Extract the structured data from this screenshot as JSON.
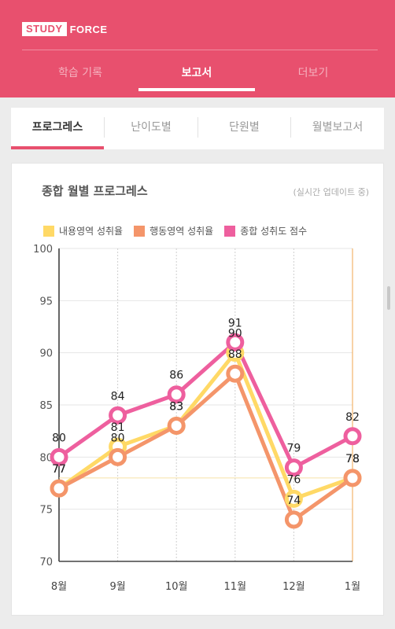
{
  "header": {
    "logo_box": "STUDY",
    "logo_text": "FORCE",
    "tabs": [
      {
        "label": "학습 기록"
      },
      {
        "label": "보고서"
      },
      {
        "label": "더보기"
      }
    ]
  },
  "subtabs": [
    {
      "label": "프로그레스"
    },
    {
      "label": "난이도별"
    },
    {
      "label": "단원별"
    },
    {
      "label": "월별보고서"
    }
  ],
  "card": {
    "title": "종합 월별 프로그레스",
    "subtitle": "(실시간 업데이트 중)"
  },
  "colors": {
    "brand": "#e8506e",
    "content": "#ffd966",
    "behavior": "#f4956a",
    "total": "#ee5f9e"
  },
  "chart_data": {
    "type": "line",
    "categories": [
      "8월",
      "9월",
      "10월",
      "11월",
      "12월",
      "1월"
    ],
    "series": [
      {
        "name": "내용영역 성취율",
        "values": [
          77,
          81,
          83,
          90,
          76,
          78
        ]
      },
      {
        "name": "행동영역 성취율",
        "values": [
          77,
          80,
          83,
          88,
          74,
          78
        ]
      },
      {
        "name": "종합 성취도 점수",
        "values": [
          80,
          84,
          86,
          91,
          79,
          82
        ]
      }
    ],
    "ylim": [
      70,
      100
    ],
    "yticks": [
      70,
      75,
      80,
      85,
      90,
      95,
      100
    ],
    "grid": true,
    "legend": "top"
  }
}
